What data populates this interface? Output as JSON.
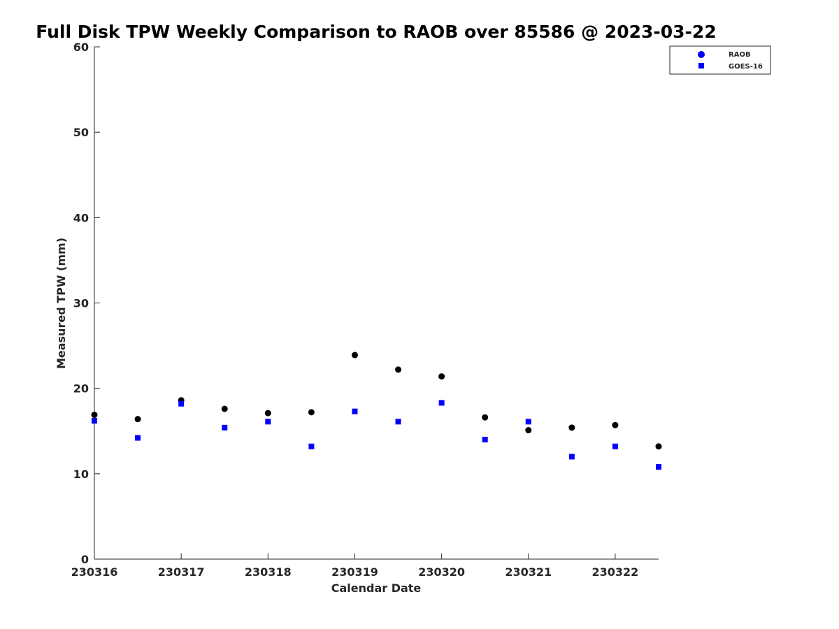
{
  "chart_data": {
    "type": "scatter",
    "title": "Full Disk TPW Weekly Comparison to RAOB over 85586 @ 2023-03-22",
    "xlabel": "Calendar Date",
    "ylabel": "Measured TPW (mm)",
    "xlim": [
      0,
      6.5
    ],
    "ylim": [
      0,
      60
    ],
    "x_ticks": [
      0,
      1,
      2,
      3,
      4,
      5,
      6
    ],
    "x_tick_labels": [
      "230316",
      "230317",
      "230318",
      "230319",
      "230320",
      "230321",
      "230322"
    ],
    "y_ticks": [
      0,
      10,
      20,
      30,
      40,
      50,
      60
    ],
    "y_tick_labels": [
      "0",
      "10",
      "20",
      "30",
      "40",
      "50",
      "60"
    ],
    "grid": false,
    "legend_position": "top-right",
    "series": [
      {
        "name": "RAOB",
        "marker": "circle",
        "color": "#000000",
        "legend_color": "#0000ff",
        "x": [
          0,
          0.5,
          1,
          1.5,
          2,
          2.5,
          3,
          3.5,
          4,
          4.5,
          5,
          5.5,
          6,
          6.5
        ],
        "values": [
          16.9,
          16.4,
          18.6,
          17.6,
          17.1,
          17.2,
          23.9,
          22.2,
          21.4,
          16.6,
          15.1,
          15.4,
          15.7,
          13.2
        ]
      },
      {
        "name": "GOES-16",
        "marker": "square",
        "color": "#0000ff",
        "legend_color": "#0000ff",
        "x": [
          0,
          0.5,
          1,
          1.5,
          2,
          2.5,
          3,
          3.5,
          4,
          4.5,
          5,
          5.5,
          6,
          6.5
        ],
        "values": [
          16.2,
          14.2,
          18.2,
          15.4,
          16.1,
          13.2,
          17.3,
          16.1,
          18.3,
          14.0,
          16.1,
          12.0,
          13.2,
          10.8
        ]
      }
    ]
  }
}
